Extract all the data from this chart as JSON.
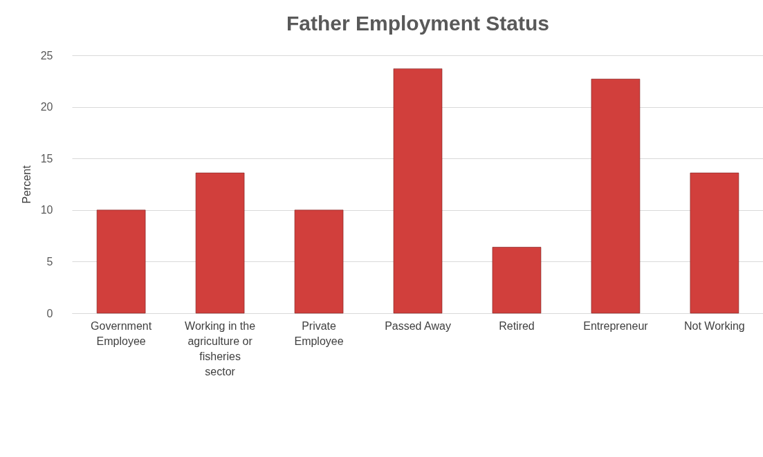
{
  "chart_data": {
    "type": "bar",
    "title": "Father Employment Status",
    "ylabel": "Percent",
    "categories": [
      "Government Employee",
      "Working in the agriculture or fisheries sector",
      "Private Employee",
      "Passed Away",
      "Retired",
      "Entrepreneur",
      "Not Working"
    ],
    "values": [
      10,
      13.6,
      10,
      23.7,
      6.4,
      22.7,
      13.6
    ],
    "color": "#d13f3c",
    "ylim": [
      0,
      25
    ],
    "yticks": [
      0,
      5,
      10,
      15,
      20,
      25
    ],
    "grid": "y"
  }
}
